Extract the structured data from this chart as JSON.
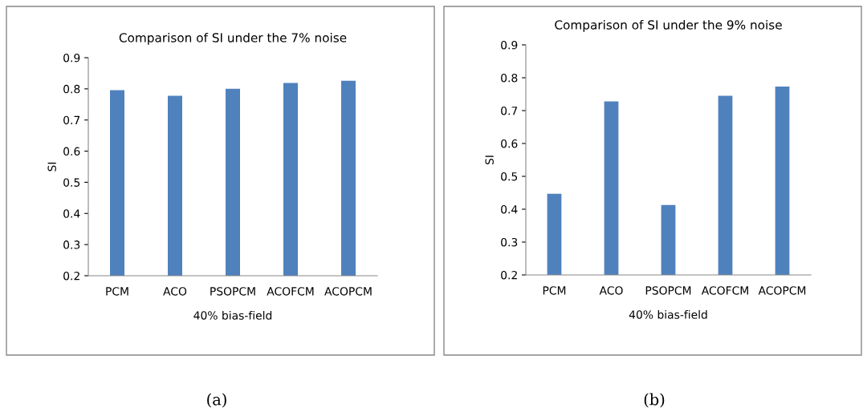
{
  "chart_data": [
    {
      "type": "bar",
      "title": "Comparison of SI under the 7% noise",
      "xlabel": "40% bias-field",
      "ylabel": "SI",
      "categories": [
        "PCM",
        "ACO",
        "PSOPCM",
        "ACOFCM",
        "ACOPCM"
      ],
      "values": [
        0.796,
        0.778,
        0.8,
        0.819,
        0.826
      ],
      "color": "#4f81bd",
      "ylim": [
        0.2,
        0.9
      ],
      "yticks": [
        0.2,
        0.3,
        0.4,
        0.5,
        0.6,
        0.7,
        0.8,
        0.9
      ],
      "grid": false,
      "legend": false,
      "annotations": [
        "(a)"
      ]
    },
    {
      "type": "bar",
      "title": "Comparison of SI under the 9% noise",
      "xlabel": "40% bias-field",
      "ylabel": "SI",
      "categories": [
        "PCM",
        "ACO",
        "PSOPCM",
        "ACOFCM",
        "ACOPCM"
      ],
      "values": [
        0.447,
        0.728,
        0.413,
        0.745,
        0.773
      ],
      "color": "#4f81bd",
      "ylim": [
        0.2,
        0.9
      ],
      "yticks": [
        0.2,
        0.3,
        0.4,
        0.5,
        0.6,
        0.7,
        0.8,
        0.9
      ],
      "grid": false,
      "legend": false,
      "annotations": [
        "(b)"
      ]
    }
  ]
}
